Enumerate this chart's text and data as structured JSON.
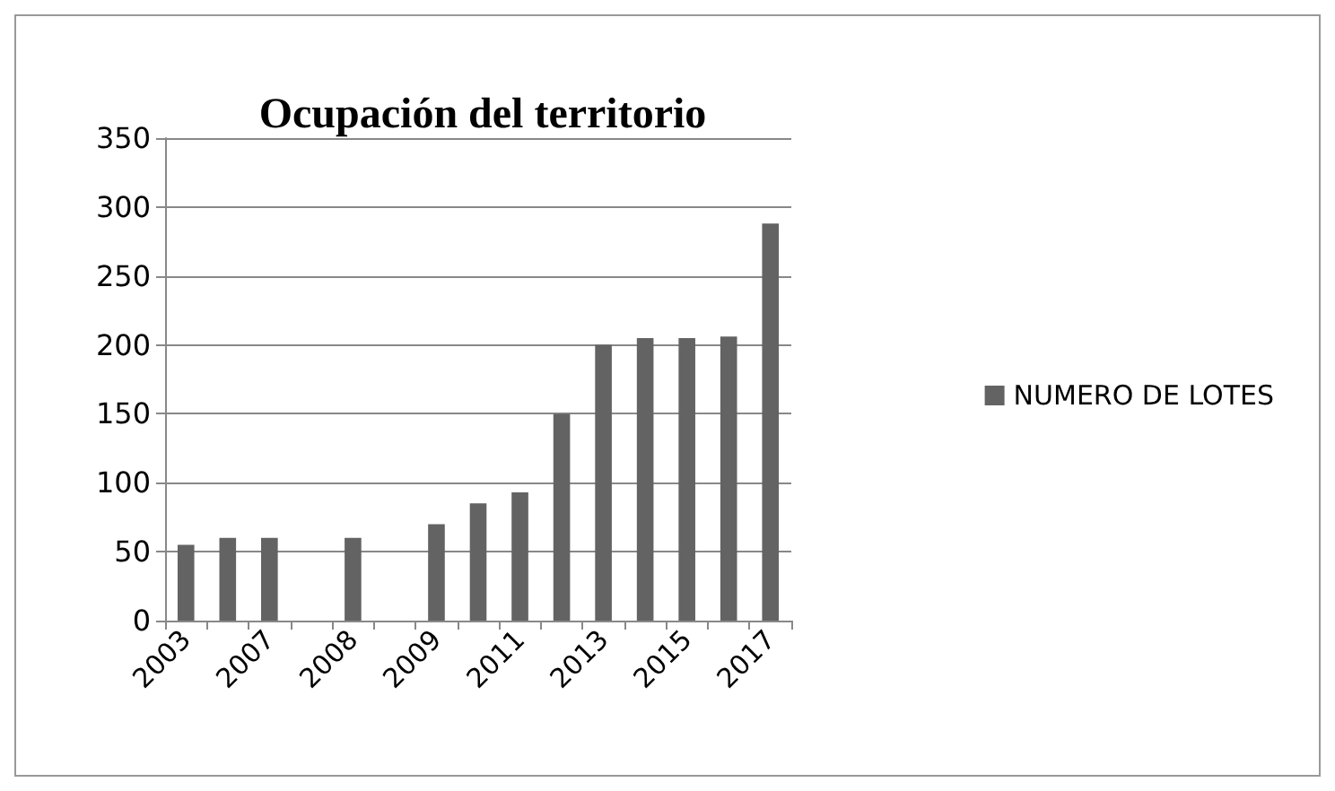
{
  "chart_data": {
    "type": "bar",
    "title": "Ocupación del territorio",
    "categories": [
      "2003",
      null,
      "2007",
      null,
      "2008",
      null,
      "2009",
      null,
      "2011",
      null,
      "2013",
      null,
      "2015",
      null,
      "2017"
    ],
    "series": [
      {
        "name": "NUMERO DE LOTES",
        "color": "#636363",
        "values": [
          55,
          60,
          60,
          null,
          60,
          null,
          70,
          85,
          93,
          150,
          200,
          205,
          205,
          206,
          288
        ]
      }
    ],
    "ylim": [
      0,
      350
    ],
    "yticks": [
      0,
      50,
      100,
      150,
      200,
      250,
      300,
      350
    ],
    "grid": "y",
    "legend": "right"
  }
}
